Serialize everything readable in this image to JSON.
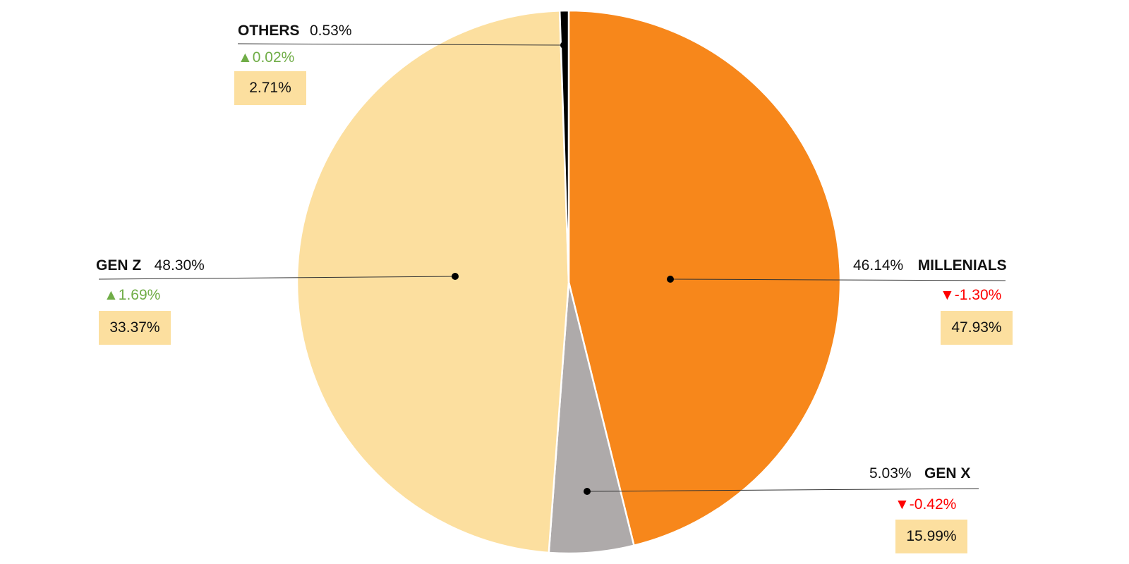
{
  "chart_data": {
    "type": "pie",
    "slices": [
      {
        "name": "MILLENIALS",
        "value": 46.14,
        "label": "46.14%",
        "color": "#f7871b",
        "change": "-1.30%",
        "direction": "down",
        "box": "47.93%"
      },
      {
        "name": "GEN X",
        "value": 5.03,
        "label": "5.03%",
        "color": "#aeaaaa",
        "change": "-0.42%",
        "direction": "down",
        "box": "15.99%"
      },
      {
        "name": "GEN Z",
        "value": 48.3,
        "label": "48.30%",
        "color": "#fcdf9f",
        "change": "1.69%",
        "direction": "up",
        "box": "33.37%"
      },
      {
        "name": "OTHERS",
        "value": 0.53,
        "label": "0.53%",
        "color": "#000000",
        "change": "0.02%",
        "direction": "up",
        "box": "2.71%"
      }
    ],
    "start_angle": "12 o'clock",
    "direction": "clockwise",
    "colors": {
      "up": "#70ad47",
      "down": "#ff0000",
      "box_bg": "#fcdf9f"
    }
  }
}
